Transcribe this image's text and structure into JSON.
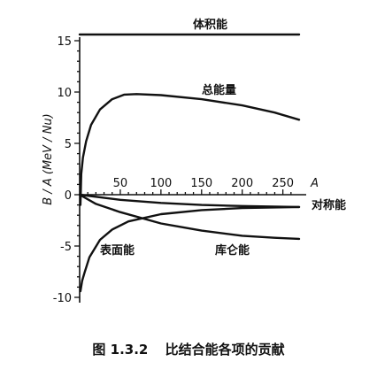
{
  "chart_data": {
    "type": "line",
    "title": "体积能",
    "ylabel": "B / A  (MeV / Nu)",
    "xlabel": "A",
    "xlim": [
      0,
      270
    ],
    "ylim": [
      -10,
      15
    ],
    "x_ticks": [
      50,
      100,
      150,
      200,
      250
    ],
    "y_ticks": [
      15,
      10,
      5,
      0,
      -5,
      -10
    ],
    "y_tick_labels": [
      "15",
      "10",
      "5",
      "0",
      "-5",
      "-10"
    ],
    "series": [
      {
        "name": "体积能",
        "points": [
          [
            0,
            15.6
          ],
          [
            270,
            15.6
          ]
        ]
      },
      {
        "name": "总能量",
        "points": [
          [
            1,
            -1
          ],
          [
            2,
            2
          ],
          [
            4,
            3.6
          ],
          [
            8,
            5.2
          ],
          [
            14,
            6.8
          ],
          [
            25,
            8.3
          ],
          [
            40,
            9.3
          ],
          [
            55,
            9.75
          ],
          [
            70,
            9.8
          ],
          [
            100,
            9.7
          ],
          [
            150,
            9.3
          ],
          [
            200,
            8.7
          ],
          [
            240,
            8.0
          ],
          [
            270,
            7.3
          ]
        ]
      },
      {
        "name": "对称能",
        "points": [
          [
            0,
            0
          ],
          [
            50,
            -0.5
          ],
          [
            100,
            -0.8
          ],
          [
            150,
            -1.0
          ],
          [
            200,
            -1.1
          ],
          [
            270,
            -1.2
          ]
        ]
      },
      {
        "name": "表面能",
        "points": [
          [
            1,
            -9.4
          ],
          [
            3,
            -8.4
          ],
          [
            6,
            -7.6
          ],
          [
            12,
            -6.1
          ],
          [
            25,
            -4.4
          ],
          [
            40,
            -3.4
          ],
          [
            60,
            -2.6
          ],
          [
            100,
            -1.9
          ],
          [
            150,
            -1.5
          ],
          [
            200,
            -1.3
          ],
          [
            270,
            -1.2
          ]
        ]
      },
      {
        "name": "库仑能",
        "points": [
          [
            0,
            0
          ],
          [
            20,
            -0.9
          ],
          [
            50,
            -1.7
          ],
          [
            100,
            -2.8
          ],
          [
            150,
            -3.5
          ],
          [
            200,
            -4.0
          ],
          [
            240,
            -4.2
          ],
          [
            270,
            -4.3
          ]
        ]
      }
    ],
    "caption_number": "图 1.3.2",
    "caption_text": "比结合能各项的贡献"
  }
}
